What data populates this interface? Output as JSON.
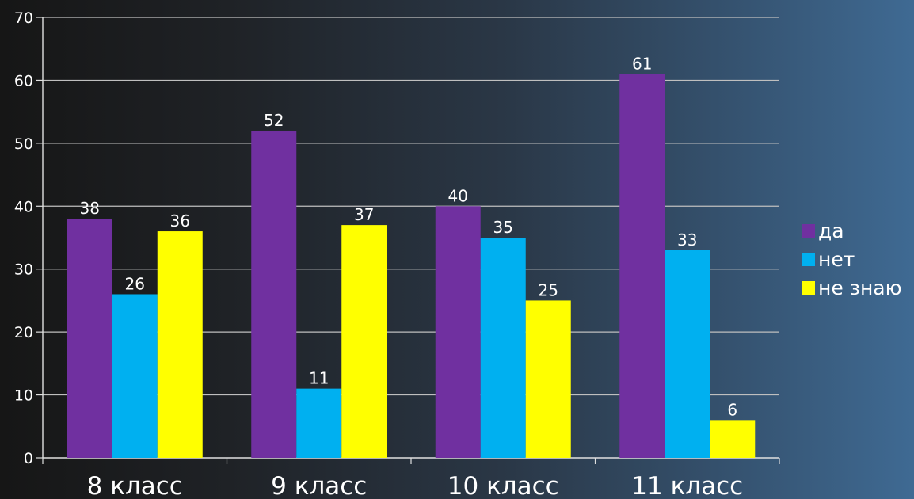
{
  "chart_data": {
    "type": "bar",
    "categories": [
      "8 класс",
      "9 класс",
      "10 класс",
      "11 класс"
    ],
    "series": [
      {
        "name": "да",
        "values": [
          38,
          52,
          40,
          61
        ],
        "color": "#7030a0"
      },
      {
        "name": "нет",
        "values": [
          26,
          11,
          35,
          33
        ],
        "color": "#00b0f0"
      },
      {
        "name": "не знаю",
        "values": [
          36,
          37,
          25,
          6
        ],
        "color": "#ffff00"
      }
    ],
    "yticks": [
      0,
      10,
      20,
      30,
      40,
      50,
      60,
      70
    ],
    "ylim": [
      0,
      70
    ],
    "grid": true,
    "legend": "right",
    "title": "",
    "xlabel": "",
    "ylabel": ""
  }
}
